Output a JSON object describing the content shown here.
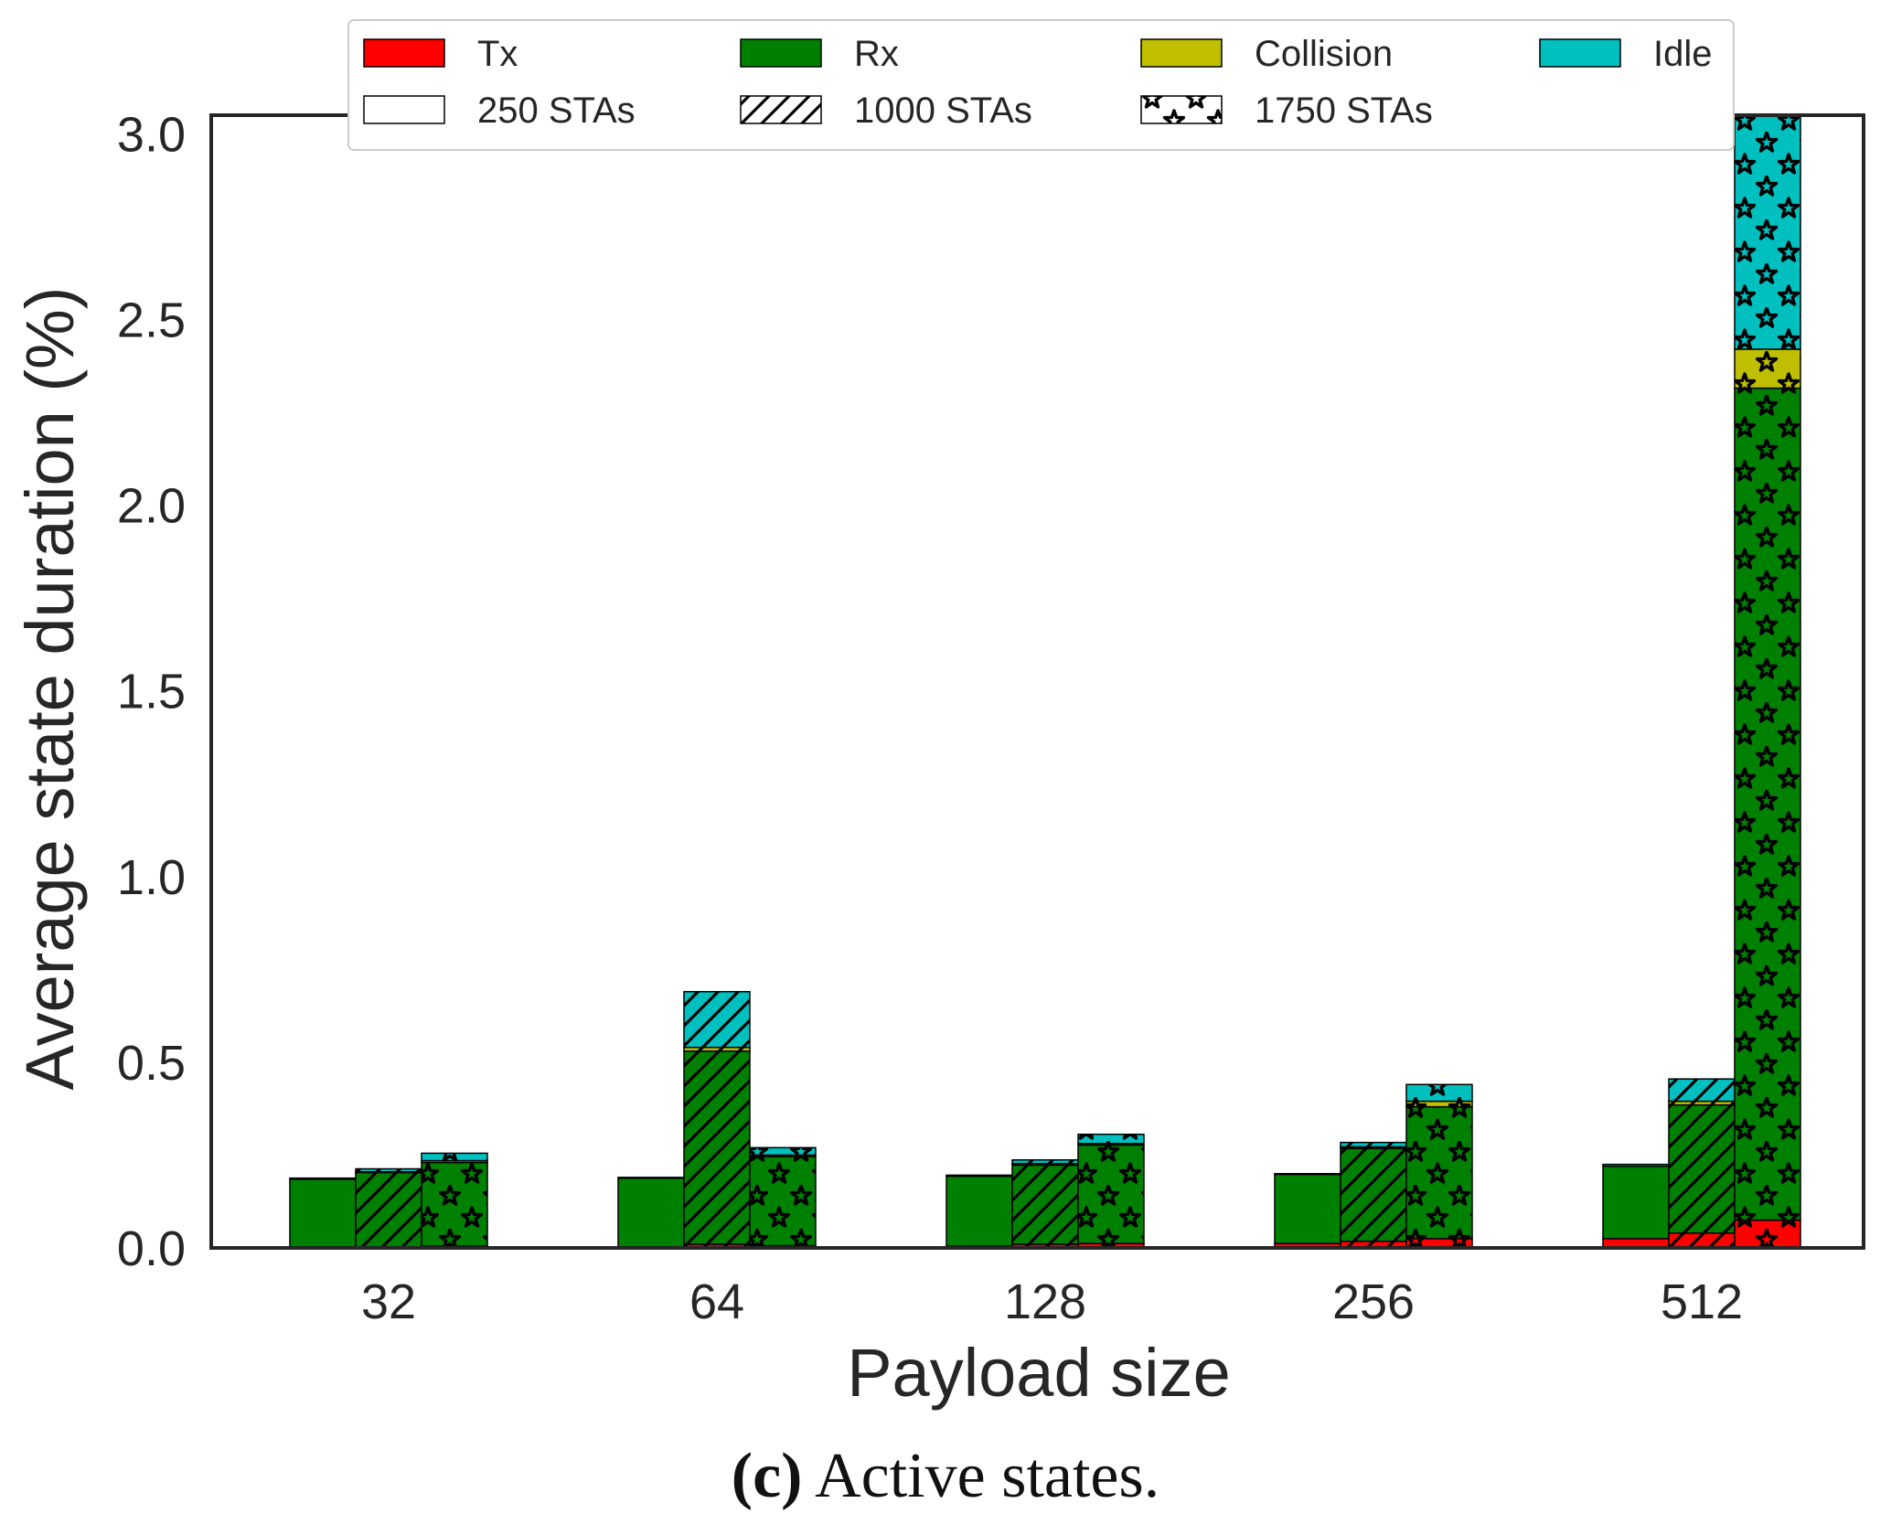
{
  "chart_data": {
    "type": "bar",
    "stacked": true,
    "grouped": true,
    "title": "",
    "xlabel": "Payload size",
    "ylabel": "Average state duration (%)",
    "categories": [
      "32",
      "64",
      "128",
      "256",
      "512"
    ],
    "ylim": [
      0,
      3.05
    ],
    "yticks": [
      "0.0",
      "0.5",
      "1.0",
      "1.5",
      "2.0",
      "2.5",
      "3.0"
    ],
    "grid": false,
    "states": [
      {
        "name": "Tx",
        "color": "#ff0000"
      },
      {
        "name": "Rx",
        "color": "#008000"
      },
      {
        "name": "Collision",
        "color": "#bfbf00"
      },
      {
        "name": "Idle",
        "color": "#00bfbf"
      }
    ],
    "groups": [
      {
        "name": "250 STAs",
        "pattern": "none"
      },
      {
        "name": "1000 STAs",
        "pattern": "hatch"
      },
      {
        "name": "1750 STAs",
        "pattern": "star"
      }
    ],
    "series": [
      {
        "category": "32",
        "group": "250 STAs",
        "Tx": 0.002,
        "Rx": 0.183,
        "Collision": 0.0,
        "Idle": 0.003
      },
      {
        "category": "32",
        "group": "1000 STAs",
        "Tx": 0.003,
        "Rx": 0.2,
        "Collision": 0.002,
        "Idle": 0.008
      },
      {
        "category": "32",
        "group": "1750 STAs",
        "Tx": 0.005,
        "Rx": 0.225,
        "Collision": 0.005,
        "Idle": 0.02
      },
      {
        "category": "64",
        "group": "250 STAs",
        "Tx": 0.003,
        "Rx": 0.185,
        "Collision": 0.0,
        "Idle": 0.002
      },
      {
        "category": "64",
        "group": "1000 STAs",
        "Tx": 0.01,
        "Rx": 0.52,
        "Collision": 0.01,
        "Idle": 0.15
      },
      {
        "category": "64",
        "group": "1750 STAs",
        "Tx": 0.006,
        "Rx": 0.24,
        "Collision": 0.004,
        "Idle": 0.02
      },
      {
        "category": "128",
        "group": "250 STAs",
        "Tx": 0.005,
        "Rx": 0.188,
        "Collision": 0.0,
        "Idle": 0.003
      },
      {
        "category": "128",
        "group": "1000 STAs",
        "Tx": 0.01,
        "Rx": 0.213,
        "Collision": 0.004,
        "Idle": 0.01
      },
      {
        "category": "128",
        "group": "1750 STAs",
        "Tx": 0.012,
        "Rx": 0.265,
        "Collision": 0.004,
        "Idle": 0.025
      },
      {
        "category": "256",
        "group": "250 STAs",
        "Tx": 0.012,
        "Rx": 0.186,
        "Collision": 0.0,
        "Idle": 0.002
      },
      {
        "category": "256",
        "group": "1000 STAs",
        "Tx": 0.018,
        "Rx": 0.25,
        "Collision": 0.004,
        "Idle": 0.012
      },
      {
        "category": "256",
        "group": "1750 STAs",
        "Tx": 0.025,
        "Rx": 0.355,
        "Collision": 0.015,
        "Idle": 0.045
      },
      {
        "category": "512",
        "group": "250 STAs",
        "Tx": 0.025,
        "Rx": 0.195,
        "Collision": 0.0,
        "Idle": 0.005
      },
      {
        "category": "512",
        "group": "1000 STAs",
        "Tx": 0.04,
        "Rx": 0.345,
        "Collision": 0.01,
        "Idle": 0.06
      },
      {
        "category": "512",
        "group": "1750 STAs",
        "Tx": 0.075,
        "Rx": 2.24,
        "Collision": 0.105,
        "Idle": 0.63
      }
    ],
    "legend": {
      "placement": "top-center",
      "entries": [
        "Tx",
        "Rx",
        "Collision",
        "Idle",
        "250 STAs",
        "1000 STAs",
        "1750 STAs"
      ]
    }
  },
  "caption": {
    "label": "(c)",
    "text": "Active states."
  }
}
